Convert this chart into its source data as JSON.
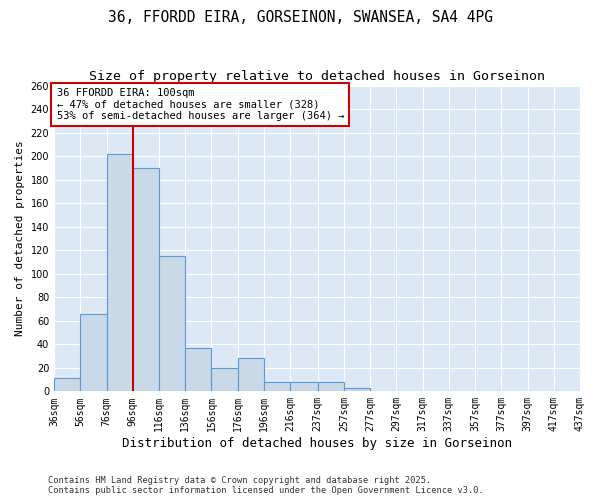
{
  "title_line1": "36, FFORDD EIRA, GORSEINON, SWANSEA, SA4 4PG",
  "title_line2": "Size of property relative to detached houses in Gorseinon",
  "xlabel": "Distribution of detached houses by size in Gorseinon",
  "ylabel": "Number of detached properties",
  "bar_edges": [
    36,
    56,
    76,
    96,
    116,
    136,
    156,
    176,
    196,
    216,
    237,
    257,
    277,
    297,
    317,
    337,
    357,
    377,
    397,
    417,
    437
  ],
  "bar_heights": [
    11,
    66,
    202,
    190,
    115,
    37,
    20,
    28,
    8,
    8,
    8,
    3,
    0,
    0,
    0,
    0,
    0,
    0,
    0,
    0
  ],
  "bar_color": "#c9d9e8",
  "bar_edge_color": "#5b9bd5",
  "property_line_x": 96,
  "property_line_color": "#cc0000",
  "annotation_text": "36 FFORDD EIRA: 100sqm\n← 47% of detached houses are smaller (328)\n53% of semi-detached houses are larger (364) →",
  "annotation_box_color": "#ffffff",
  "annotation_box_edge": "#cc0000",
  "ylim": [
    0,
    260
  ],
  "yticks": [
    0,
    20,
    40,
    60,
    80,
    100,
    120,
    140,
    160,
    180,
    200,
    220,
    240,
    260
  ],
  "background_color": "#dce8f5",
  "grid_color": "#ffffff",
  "footer_text": "Contains HM Land Registry data © Crown copyright and database right 2025.\nContains public sector information licensed under the Open Government Licence v3.0.",
  "title_fontsize": 10.5,
  "subtitle_fontsize": 9.5,
  "tick_label_fontsize": 7,
  "annotation_fontsize": 7.5,
  "ylabel_fontsize": 8,
  "xlabel_fontsize": 9
}
